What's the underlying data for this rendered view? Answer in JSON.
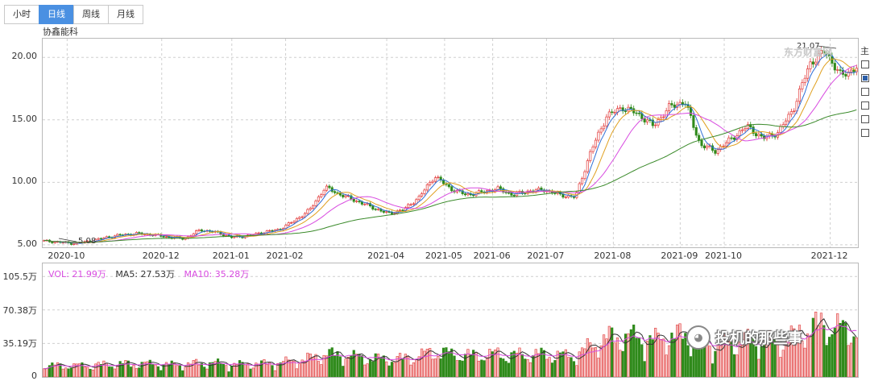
{
  "tabs": [
    {
      "label": "小时",
      "active": false
    },
    {
      "label": "日线",
      "active": true
    },
    {
      "label": "周线",
      "active": false
    },
    {
      "label": "月线",
      "active": false
    }
  ],
  "stock_name": "协鑫能科",
  "watermark": "东方财富网",
  "right_panel": {
    "header": "主",
    "options": [
      false,
      true,
      false,
      false,
      false,
      false
    ]
  },
  "price_axis": {
    "ticks": [
      "20.00",
      "15.00",
      "10.00",
      "5.00"
    ],
    "values": [
      20,
      15,
      10,
      5
    ]
  },
  "high_label": "21.07",
  "low_label": "5.08",
  "x_axis": [
    {
      "label": "2020-10",
      "pos": 0.03
    },
    {
      "label": "2020-12",
      "pos": 0.146
    },
    {
      "label": "2021-01",
      "pos": 0.232
    },
    {
      "label": "2021-02",
      "pos": 0.298
    },
    {
      "label": "2021-04",
      "pos": 0.422
    },
    {
      "label": "2021-05",
      "pos": 0.493
    },
    {
      "label": "2021-06",
      "pos": 0.552
    },
    {
      "label": "2021-07",
      "pos": 0.618
    },
    {
      "label": "2021-08",
      "pos": 0.7
    },
    {
      "label": "2021-09",
      "pos": 0.782
    },
    {
      "label": "2021-10",
      "pos": 0.836
    },
    {
      "label": "2021-12",
      "pos": 0.966
    }
  ],
  "volume_legend": {
    "vol": "VOL: 21.99万",
    "ma5": "MA5: 27.53万",
    "ma10": "MA10: 35.28万"
  },
  "volume_axis": {
    "ticks": [
      "105.5万",
      "70.38万",
      "35.19万",
      "0"
    ],
    "values": [
      105.5,
      70.38,
      35.19,
      0
    ]
  },
  "wechat_label": "投机的那些事",
  "colors": {
    "up": "#e23b3b",
    "down": "#2f8a1b",
    "ma5": "#2f6fd6",
    "ma10": "#e0a020",
    "ma20": "#d84be0",
    "ma60": "#3a8a2a",
    "grid": "#cfcfcf"
  },
  "chart_data": {
    "type": "line",
    "title": "协鑫能科",
    "xlabel": "",
    "ylabel": "",
    "ylim": [
      4.8,
      21.5
    ],
    "series": [
      {
        "name": "close",
        "values": [
          5.3,
          5.2,
          5.1,
          5.3,
          5.6,
          5.8,
          5.9,
          5.8,
          5.6,
          5.5,
          6.2,
          6.0,
          5.6,
          5.7,
          6.0,
          6.2,
          6.9,
          7.8,
          9.6,
          9.0,
          8.5,
          8.0,
          7.5,
          7.8,
          8.8,
          10.5,
          9.5,
          9.0,
          9.2,
          9.5,
          9.0,
          9.3,
          9.4,
          9.0,
          8.8,
          12.5,
          15.3,
          16.0,
          15.5,
          14.5,
          16.0,
          16.5,
          13.0,
          12.5,
          13.5,
          14.5,
          13.5,
          14.0,
          16.0,
          19.5,
          20.5,
          18.5,
          19.2
        ]
      }
    ]
  }
}
